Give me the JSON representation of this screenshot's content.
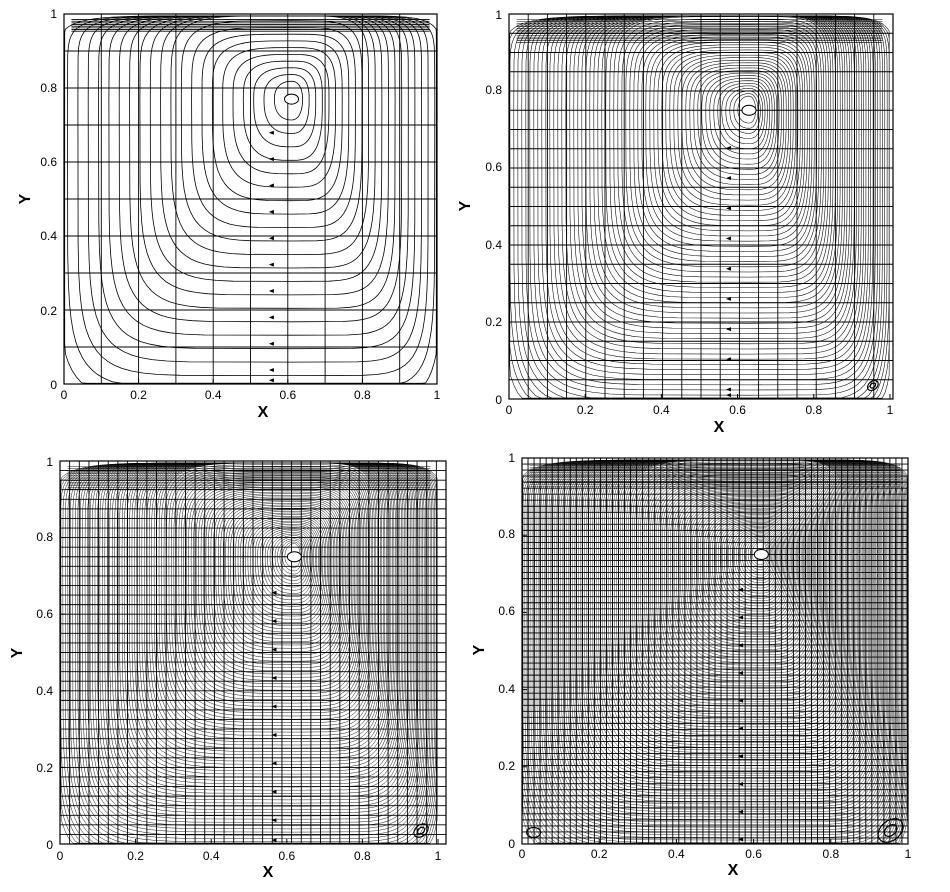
{
  "figure": {
    "panels": [
      {
        "id": "top-left",
        "xlabel": "X",
        "ylabel": "Y",
        "x_ticks": [
          "0",
          "0.2",
          "0.4",
          "0.6",
          "0.8",
          "1"
        ],
        "y_ticks": [
          "0",
          "0.2",
          "0.4",
          "0.6",
          "0.8",
          "1"
        ],
        "grid_divisions": 10,
        "vortex_center": [
          0.61,
          0.77
        ]
      },
      {
        "id": "top-right",
        "xlabel": "X",
        "ylabel": "Y",
        "x_ticks": [
          "0",
          "0.2",
          "0.4",
          "0.6",
          "0.8",
          "1"
        ],
        "y_ticks": [
          "0",
          "0.2",
          "0.4",
          "0.6",
          "0.8",
          "1"
        ],
        "grid_divisions": 20,
        "vortex_center": [
          0.63,
          0.75
        ]
      },
      {
        "id": "bottom-left",
        "xlabel": "X",
        "ylabel": "Y",
        "x_ticks": [
          "0",
          "0.2",
          "0.4",
          "0.6",
          "0.8",
          "1"
        ],
        "y_ticks": [
          "0",
          "0.2",
          "0.4",
          "0.6",
          "0.8",
          "1"
        ],
        "grid_divisions": 40,
        "vortex_center": [
          0.62,
          0.75
        ]
      },
      {
        "id": "bottom-right",
        "xlabel": "X",
        "ylabel": "Y",
        "x_ticks": [
          "0",
          "0.2",
          "0.4",
          "0.6",
          "0.8",
          "1"
        ],
        "y_ticks": [
          "0",
          "0.2",
          "0.4",
          "0.6",
          "0.8",
          "1"
        ],
        "grid_divisions": 64,
        "vortex_center": [
          0.62,
          0.75
        ]
      }
    ]
  }
}
